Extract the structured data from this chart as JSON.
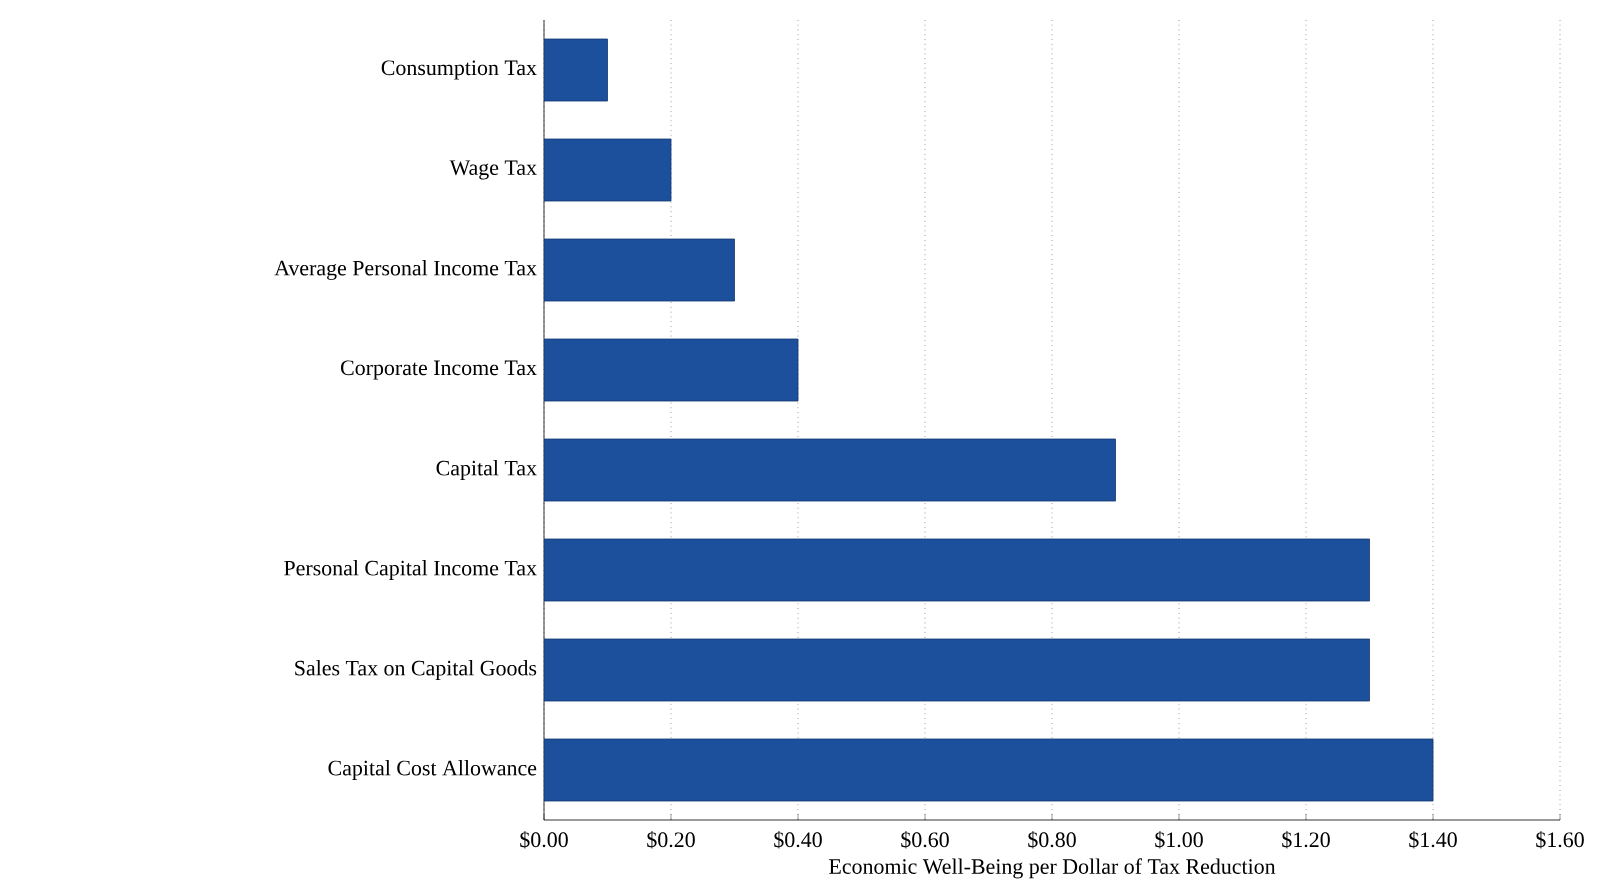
{
  "chart_data": {
    "type": "bar",
    "orientation": "horizontal",
    "xlabel": "Economic Well-Being per Dollar of Tax Reduction",
    "categories": [
      "Consumption Tax",
      "Wage Tax",
      "Average Personal Income Tax",
      "Corporate Income Tax",
      "Capital Tax",
      "Personal Capital Income Tax",
      "Sales Tax on Capital Goods",
      "Capital Cost Allowance"
    ],
    "values": [
      0.1,
      0.2,
      0.3,
      0.4,
      0.9,
      1.3,
      1.3,
      1.4
    ],
    "color": "#1c4f9c",
    "xlim": [
      0,
      1.6
    ],
    "xticks": [
      {
        "value": 0,
        "label": "$0.00"
      },
      {
        "value": 0.2,
        "label": "$0.20"
      },
      {
        "value": 0.4,
        "label": "$0.40"
      },
      {
        "value": 0.6,
        "label": "$0.60"
      },
      {
        "value": 0.8,
        "label": "$0.80"
      },
      {
        "value": 1.0,
        "label": "$1.00"
      },
      {
        "value": 1.2,
        "label": "$1.20"
      },
      {
        "value": 1.4,
        "label": "$1.40"
      },
      {
        "value": 1.6,
        "label": "$1.60"
      }
    ],
    "grid": "x"
  }
}
